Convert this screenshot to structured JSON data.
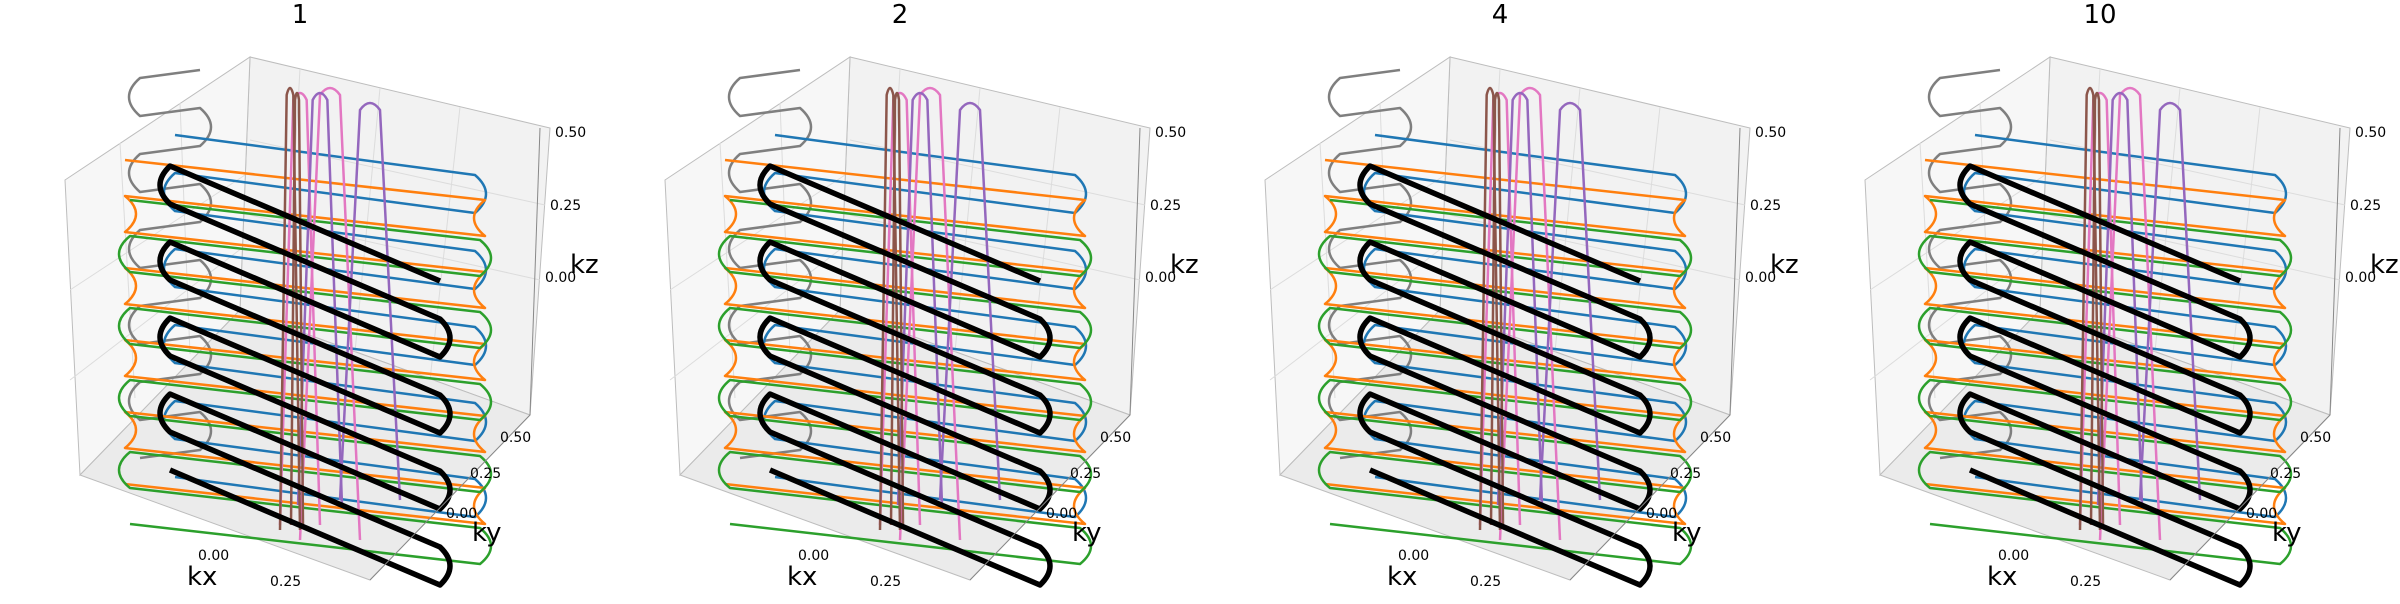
{
  "figure": {
    "panels": [
      {
        "title": "1"
      },
      {
        "title": "2"
      },
      {
        "title": "4"
      },
      {
        "title": "10"
      }
    ],
    "colors": {
      "blue": "#1f77b4",
      "orange": "#ff7f0e",
      "green": "#2ca02c",
      "purple": "#9467bd",
      "brown": "#8c564b",
      "pink": "#e377c2",
      "gray": "#7f7f7f",
      "black": "#000000",
      "pane": "#f2f2f2",
      "pane_edge": "#bdbdbd",
      "grid": "#dcdcdc"
    }
  },
  "chart_data": [
    {
      "type": "line",
      "projection": "3d",
      "title": "1",
      "xlabel": "kx",
      "ylabel": "ky",
      "zlabel": "kz",
      "xticks": [
        "0.00",
        "0.25"
      ],
      "yticks": [
        "0.00",
        "0.25",
        "0.50"
      ],
      "zticks": [
        "0.00",
        "0.25",
        "0.50"
      ],
      "grid": true,
      "series": [
        {
          "color": "black",
          "values": "zig-zag trajectory, 8 passes, bold"
        },
        {
          "color": "blue"
        },
        {
          "color": "orange"
        },
        {
          "color": "green"
        },
        {
          "color": "purple"
        },
        {
          "color": "brown"
        },
        {
          "color": "pink"
        },
        {
          "color": "gray"
        }
      ]
    },
    {
      "type": "line",
      "projection": "3d",
      "title": "2",
      "xlabel": "kx",
      "ylabel": "ky",
      "zlabel": "kz",
      "xticks": [
        "0.00",
        "0.25"
      ],
      "yticks": [
        "0.00",
        "0.25",
        "0.50"
      ],
      "zticks": [
        "0.00",
        "0.25",
        "0.50"
      ],
      "grid": true,
      "series": [
        {
          "color": "black"
        },
        {
          "color": "blue"
        },
        {
          "color": "orange"
        },
        {
          "color": "green"
        },
        {
          "color": "purple"
        },
        {
          "color": "brown"
        },
        {
          "color": "pink"
        },
        {
          "color": "gray"
        }
      ]
    },
    {
      "type": "line",
      "projection": "3d",
      "title": "4",
      "xlabel": "kx",
      "ylabel": "ky",
      "zlabel": "kz",
      "xticks": [
        "0.00",
        "0.25"
      ],
      "yticks": [
        "0.00",
        "0.25",
        "0.50"
      ],
      "zticks": [
        "0.00",
        "0.25",
        "0.50"
      ],
      "grid": true,
      "series": [
        {
          "color": "black"
        },
        {
          "color": "blue"
        },
        {
          "color": "orange"
        },
        {
          "color": "green"
        },
        {
          "color": "purple"
        },
        {
          "color": "brown"
        },
        {
          "color": "pink"
        },
        {
          "color": "gray"
        }
      ]
    },
    {
      "type": "line",
      "projection": "3d",
      "title": "10",
      "xlabel": "kx",
      "ylabel": "ky",
      "zlabel": "kz",
      "xticks": [
        "0.00",
        "0.25"
      ],
      "yticks": [
        "0.00",
        "0.25",
        "0.50"
      ],
      "zticks": [
        "0.00",
        "0.25",
        "0.50"
      ],
      "grid": true,
      "series": [
        {
          "color": "black"
        },
        {
          "color": "blue"
        },
        {
          "color": "orange"
        },
        {
          "color": "green"
        },
        {
          "color": "purple"
        },
        {
          "color": "brown"
        },
        {
          "color": "pink"
        },
        {
          "color": "gray"
        }
      ]
    }
  ]
}
